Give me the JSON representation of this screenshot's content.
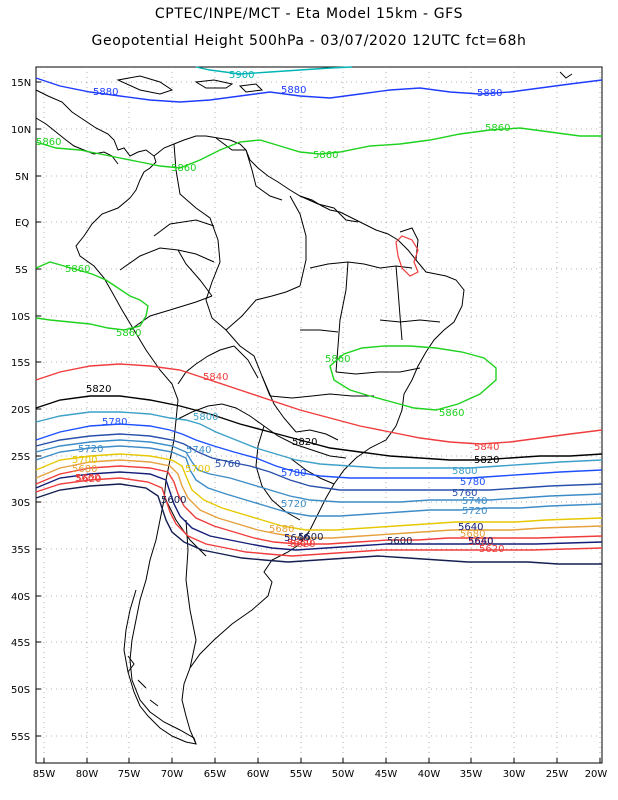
{
  "header": {
    "line1": "CPTEC/INPE/MCT -  Eta Model 15km - GFS",
    "line2": "Geopotential Height 500hPa - 03/07/2020 12UTC fct=68h"
  },
  "axes": {
    "lat_labels": [
      "15N",
      "10N",
      "5N",
      "EQ",
      "5S",
      "10S",
      "15S",
      "20S",
      "25S",
      "30S",
      "35S",
      "40S",
      "45S",
      "50S",
      "55S"
    ],
    "lon_labels": [
      "85W",
      "80W",
      "75W",
      "70W",
      "65W",
      "60W",
      "55W",
      "50W",
      "45W",
      "40W",
      "35W",
      "30W",
      "25W",
      "20W"
    ]
  },
  "contours": {
    "labels": [
      {
        "text": "5900",
        "color": "#00b4b4"
      },
      {
        "text": "5880",
        "color": "#1e3cff"
      },
      {
        "text": "5880",
        "color": "#1e3cff"
      },
      {
        "text": "5880",
        "color": "#1e3cff"
      },
      {
        "text": "5860",
        "color": "#1ed21e"
      },
      {
        "text": "5860",
        "color": "#1ed21e"
      },
      {
        "text": "5860",
        "color": "#1ed21e"
      },
      {
        "text": "5860",
        "color": "#1ed21e"
      },
      {
        "text": "5860",
        "color": "#1ed21e"
      },
      {
        "text": "5860",
        "color": "#1ed21e"
      },
      {
        "text": "5860",
        "color": "#1ed21e"
      },
      {
        "text": "5860",
        "color": "#1ed21e"
      },
      {
        "text": "5840",
        "color": "#f03c3c"
      },
      {
        "text": "5840",
        "color": "#f03c3c"
      },
      {
        "text": "5820",
        "color": "#000000"
      },
      {
        "text": "5820",
        "color": "#000000"
      },
      {
        "text": "5820",
        "color": "#000000"
      },
      {
        "text": "5800",
        "color": "#3ca0c8"
      },
      {
        "text": "5800",
        "color": "#3ca0c8"
      },
      {
        "text": "5780",
        "color": "#1e50ff"
      },
      {
        "text": "5780",
        "color": "#1e50ff"
      },
      {
        "text": "5780",
        "color": "#1e50ff"
      },
      {
        "text": "5760",
        "color": "#2850aa"
      },
      {
        "text": "5760",
        "color": "#2850aa"
      },
      {
        "text": "5740",
        "color": "#3c8cc8"
      },
      {
        "text": "5740",
        "color": "#3c8cc8"
      },
      {
        "text": "5720",
        "color": "#3c8cc8"
      },
      {
        "text": "5720",
        "color": "#3c8cc8"
      },
      {
        "text": "5720",
        "color": "#3c8cc8"
      },
      {
        "text": "5700",
        "color": "#e6c800"
      },
      {
        "text": "5700",
        "color": "#e6c800"
      },
      {
        "text": "5680",
        "color": "#e6a03c"
      },
      {
        "text": "5680",
        "color": "#e6a03c"
      },
      {
        "text": "5680",
        "color": "#e6a03c"
      },
      {
        "text": "5660",
        "color": "#f03c3c"
      },
      {
        "text": "5660",
        "color": "#f03c3c"
      },
      {
        "text": "5660",
        "color": "#f03c3c"
      },
      {
        "text": "5640",
        "color": "#141e78"
      },
      {
        "text": "5640",
        "color": "#141e78"
      },
      {
        "text": "5640",
        "color": "#141e78"
      },
      {
        "text": "5620",
        "color": "#f03c3c"
      },
      {
        "text": "5620",
        "color": "#f03c3c"
      },
      {
        "text": "5620",
        "color": "#f03c3c"
      },
      {
        "text": "5600",
        "color": "#141e50"
      },
      {
        "text": "5600",
        "color": "#141e50"
      },
      {
        "text": "5600",
        "color": "#141e50"
      }
    ]
  }
}
